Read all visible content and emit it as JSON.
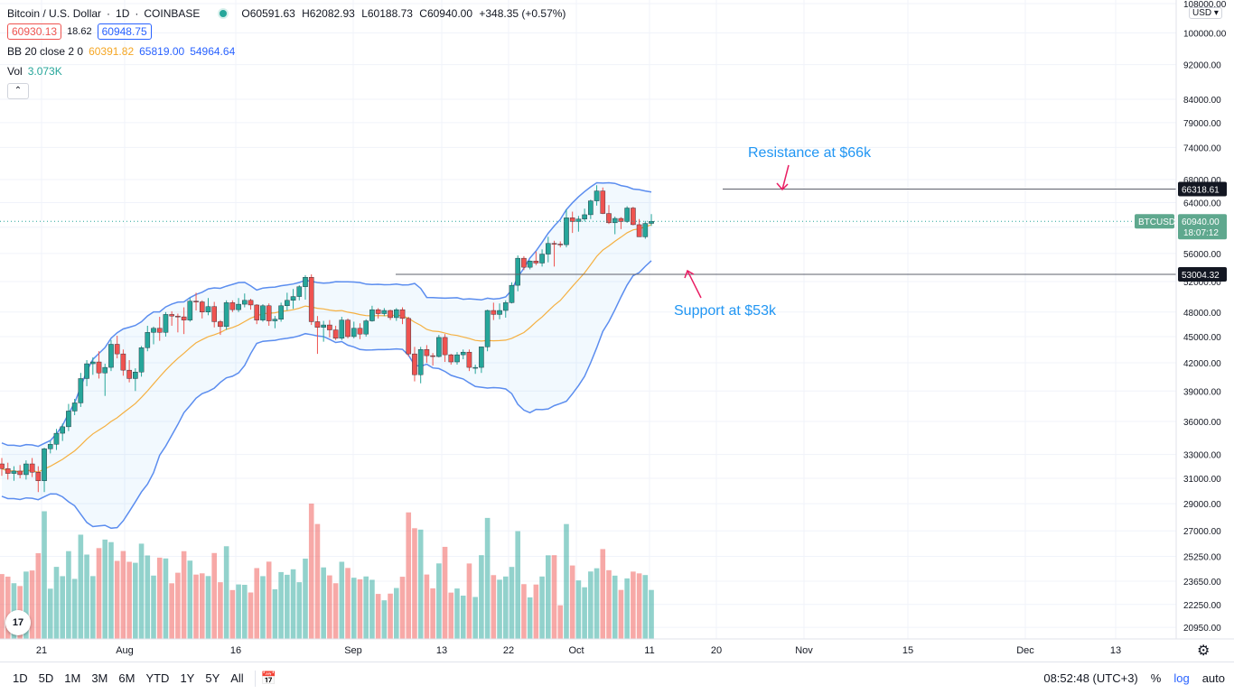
{
  "header": {
    "symbol": "Bitcoin / U.S. Dollar",
    "interval": "1D",
    "exchange": "COINBASE",
    "open": "O60591.63",
    "high": "H62082.93",
    "low": "L60188.73",
    "close": "C60940.00",
    "change": "+348.35 (+0.57%)",
    "sell_price": "60930.13",
    "spread": "18.62",
    "buy_price": "60948.75",
    "bb_label": "BB 20 close 2 0",
    "bb_basis": "60391.82",
    "bb_upper": "65819.00",
    "bb_lower": "54964.64",
    "vol_label": "Vol",
    "vol_value": "3.073K",
    "collapse_icon": "chevron-up-icon"
  },
  "price_axis": {
    "currency": "USD",
    "tick_labels": [
      "108000.00",
      "100000.00",
      "92000.00",
      "84000.00",
      "79000.00",
      "74000.00",
      "68000.00",
      "64000.00",
      "60000.00",
      "56000.00",
      "52000.00",
      "48000.00",
      "45000.00",
      "42000.00",
      "39000.00",
      "36000.00",
      "33000.00",
      "31000.00",
      "29000.00",
      "27000.00",
      "25250.00",
      "23650.00",
      "22250.00",
      "20950.00"
    ],
    "resistance_label": "66318.61",
    "support_label": "53004.32",
    "symbol_tag": "BTCUSD",
    "last_price_label": "60940.00",
    "countdown": "18:07:12"
  },
  "time_axis": {
    "labels": [
      "21",
      "Aug",
      "16",
      "Sep",
      "13",
      "22",
      "Oct",
      "11",
      "20",
      "Nov",
      "15",
      "Dec",
      "13"
    ]
  },
  "annotations": {
    "resistance": "Resistance at $66k",
    "support": "Support at $53k"
  },
  "bottom_bar": {
    "timeframes": [
      "1D",
      "5D",
      "1M",
      "3M",
      "6M",
      "YTD",
      "1Y",
      "5Y",
      "All"
    ],
    "clock": "08:52:48 (UTC+3)",
    "percent": "%",
    "log": "log",
    "auto": "auto",
    "compare_icon": "calendar-range-icon",
    "settings_icon": "gear-icon"
  },
  "colors": {
    "up": "#26a69a",
    "down": "#ef5350",
    "band": "#5b8def",
    "basis": "#f5b041",
    "annotation": "#2196f3",
    "arrow": "#e91e63"
  },
  "chart_data": {
    "type": "candlestick",
    "title": "Bitcoin / U.S. Dollar",
    "x_start": "2021-07-19",
    "dates_note": "daily candles",
    "ylim": [
      20000,
      110000
    ],
    "y_scale": "log",
    "candles": [
      [
        32200,
        32700,
        31200,
        31800
      ],
      [
        31800,
        32300,
        30900,
        31400
      ],
      [
        31400,
        32000,
        30800,
        31600
      ],
      [
        31600,
        32100,
        31000,
        31300
      ],
      [
        31300,
        32500,
        30900,
        32200
      ],
      [
        32200,
        32700,
        31100,
        31500
      ],
      [
        31500,
        32000,
        29900,
        30800
      ],
      [
        30800,
        33600,
        29900,
        33500
      ],
      [
        33500,
        34200,
        33100,
        33900
      ],
      [
        33900,
        35300,
        33400,
        34900
      ],
      [
        34900,
        35800,
        34200,
        35500
      ],
      [
        35500,
        37700,
        35100,
        37000
      ],
      [
        37000,
        38200,
        36600,
        37800
      ],
      [
        37800,
        40900,
        37400,
        40300
      ],
      [
        40300,
        42300,
        39500,
        41900
      ],
      [
        41900,
        42600,
        40700,
        42100
      ],
      [
        42100,
        43300,
        40300,
        40900
      ],
      [
        40900,
        41900,
        38500,
        41500
      ],
      [
        41500,
        44600,
        41100,
        44100
      ],
      [
        44100,
        45100,
        42500,
        43000
      ],
      [
        43000,
        43500,
        40600,
        41200
      ],
      [
        41200,
        42300,
        39900,
        40300
      ],
      [
        40300,
        41400,
        39000,
        41000
      ],
      [
        41000,
        43900,
        40500,
        43700
      ],
      [
        43700,
        46300,
        43300,
        45500
      ],
      [
        45500,
        46200,
        44100,
        46000
      ],
      [
        46000,
        47400,
        44500,
        45500
      ],
      [
        45500,
        48000,
        45000,
        47700
      ],
      [
        47700,
        48100,
        46300,
        47500
      ],
      [
        47500,
        47800,
        45500,
        47400
      ],
      [
        47400,
        48600,
        45300,
        47000
      ],
      [
        47000,
        49800,
        46800,
        49400
      ],
      [
        49400,
        50500,
        48200,
        49300
      ],
      [
        49300,
        49500,
        47200,
        48000
      ],
      [
        48000,
        49800,
        47600,
        48700
      ],
      [
        48700,
        49300,
        46100,
        46800
      ],
      [
        46800,
        47000,
        45200,
        46200
      ],
      [
        46200,
        49500,
        45800,
        49200
      ],
      [
        49200,
        49500,
        48000,
        48300
      ],
      [
        48300,
        49800,
        48000,
        49000
      ],
      [
        49000,
        50400,
        48600,
        49500
      ],
      [
        49500,
        49700,
        48300,
        48900
      ],
      [
        48900,
        49000,
        46500,
        47000
      ],
      [
        47000,
        49000,
        46800,
        48800
      ],
      [
        48800,
        49100,
        46300,
        46900
      ],
      [
        46900,
        47500,
        46000,
        47100
      ],
      [
        47100,
        49200,
        46800,
        48800
      ],
      [
        48800,
        50500,
        48200,
        49500
      ],
      [
        49500,
        51000,
        48400,
        50000
      ],
      [
        50000,
        51500,
        49500,
        51300
      ],
      [
        51300,
        52900,
        49600,
        52600
      ],
      [
        52600,
        53000,
        46400,
        46800
      ],
      [
        46800,
        47500,
        43000,
        46100
      ],
      [
        46100,
        46900,
        44400,
        46400
      ],
      [
        46400,
        47000,
        44900,
        45800
      ],
      [
        45800,
        46300,
        44600,
        44800
      ],
      [
        44800,
        47400,
        44600,
        47000
      ],
      [
        47000,
        47200,
        44800,
        45000
      ],
      [
        45000,
        46800,
        44800,
        46000
      ],
      [
        46000,
        46600,
        44700,
        45300
      ],
      [
        45300,
        47100,
        45000,
        46900
      ],
      [
        46900,
        48800,
        46800,
        48300
      ],
      [
        48300,
        48500,
        47200,
        47800
      ],
      [
        47800,
        48500,
        47500,
        48200
      ],
      [
        48200,
        48300,
        47000,
        47300
      ],
      [
        47300,
        48500,
        46900,
        48300
      ],
      [
        48300,
        48600,
        46500,
        47200
      ],
      [
        47200,
        47400,
        42700,
        43000
      ],
      [
        43000,
        43800,
        40000,
        40700
      ],
      [
        40700,
        43800,
        39800,
        43500
      ],
      [
        43500,
        44000,
        42000,
        42800
      ],
      [
        42800,
        43100,
        41700,
        42700
      ],
      [
        42700,
        45200,
        42600,
        44900
      ],
      [
        44900,
        45300,
        42100,
        42900
      ],
      [
        42900,
        43000,
        41800,
        42100
      ],
      [
        42100,
        43200,
        41800,
        42900
      ],
      [
        42900,
        43500,
        42400,
        43200
      ],
      [
        43200,
        43500,
        41100,
        41500
      ],
      [
        41500,
        41800,
        40800,
        41500
      ],
      [
        41500,
        43800,
        40900,
        43800
      ],
      [
        43800,
        48300,
        43300,
        48200
      ],
      [
        48200,
        49200,
        47000,
        47700
      ],
      [
        47700,
        49100,
        47100,
        48200
      ],
      [
        48200,
        49500,
        47300,
        49200
      ],
      [
        49200,
        51900,
        49100,
        51500
      ],
      [
        51500,
        55700,
        50700,
        55300
      ],
      [
        55300,
        55600,
        53600,
        54000
      ],
      [
        54000,
        55000,
        53700,
        54900
      ],
      [
        54900,
        56300,
        54300,
        54600
      ],
      [
        54600,
        56600,
        54100,
        55900
      ],
      [
        55900,
        58500,
        54700,
        57500
      ],
      [
        57500,
        57900,
        54100,
        57400
      ],
      [
        57400,
        57800,
        56900,
        57300
      ],
      [
        57300,
        62900,
        56900,
        61500
      ],
      [
        61500,
        62500,
        59100,
        60900
      ],
      [
        60900,
        61800,
        59300,
        61300
      ],
      [
        61300,
        63000,
        60900,
        62000
      ],
      [
        62000,
        64500,
        61300,
        64300
      ],
      [
        64300,
        67000,
        63500,
        66000
      ],
      [
        66000,
        66600,
        62100,
        62200
      ],
      [
        62200,
        63600,
        60500,
        60700
      ],
      [
        60700,
        61700,
        58900,
        61400
      ],
      [
        61400,
        61600,
        59700,
        60900
      ],
      [
        60900,
        63400,
        60700,
        63100
      ],
      [
        63100,
        63300,
        60300,
        60400
      ],
      [
        60400,
        61300,
        58500,
        58500
      ],
      [
        58500,
        61000,
        58200,
        60600
      ],
      [
        60600,
        62100,
        60200,
        60940
      ]
    ],
    "volume_note": "relative daily volume, 3.073K on last bar",
    "bollinger": {
      "period": 20,
      "stddev": 2
    },
    "resistance": 66318.61,
    "support": 53004.32
  }
}
